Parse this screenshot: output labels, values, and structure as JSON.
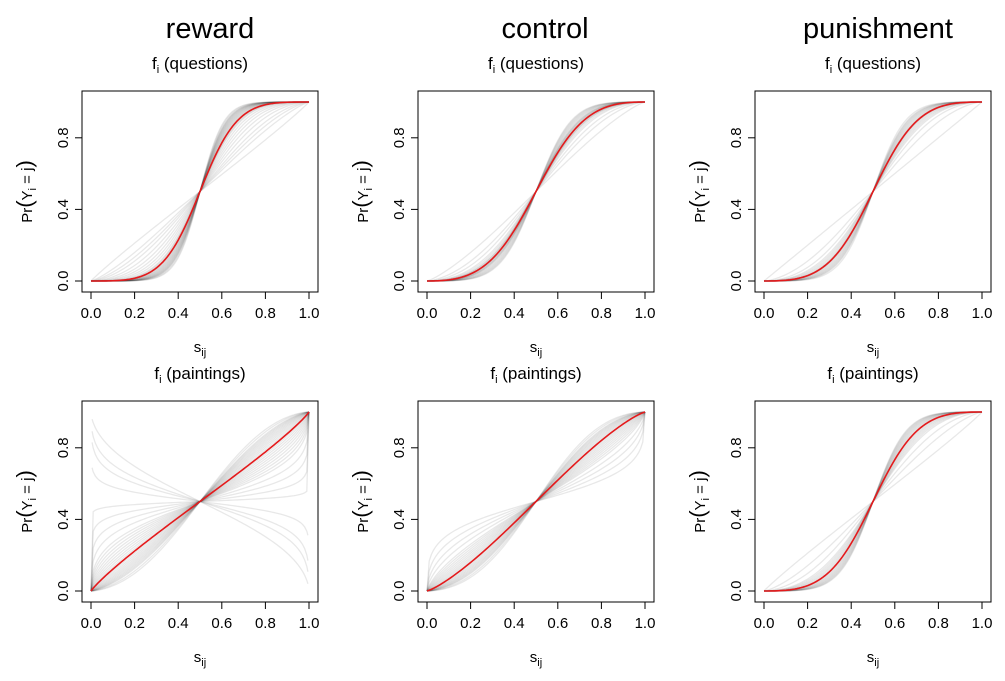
{
  "conditions": [
    "reward",
    "control",
    "punishment"
  ],
  "panel_titles": {
    "questions": {
      "main": "f",
      "sub": "i",
      "rest": " (questions)"
    },
    "paintings": {
      "main": "f",
      "sub": "i",
      "rest": " (paintings)"
    }
  },
  "axis_labels": {
    "xlabel": {
      "main": "s",
      "sub": "ij"
    },
    "ylabel": {
      "pre": "Pr",
      "open": "(",
      "main": "Y",
      "sub": "i",
      "eq": " = j",
      "close": ")"
    }
  },
  "colors": {
    "mean_curve": "#e41a1c",
    "individual_curve": "#000000",
    "frame": "#000000"
  },
  "chart_data": [
    {
      "type": "line",
      "condition": "reward",
      "stimulus": "questions",
      "xlim": [
        0,
        1
      ],
      "ylim": [
        0,
        1
      ],
      "xticks": [
        "0.0",
        "0.2",
        "0.4",
        "0.6",
        "0.8",
        "1.0"
      ],
      "yticks": [
        "0.0",
        "0.4",
        "0.8"
      ],
      "mean_gamma": 3.0,
      "individual_gammas": [
        0.95,
        1.2,
        1.35,
        1.5,
        1.7,
        1.9,
        2.1,
        2.3,
        2.5,
        2.7,
        2.8,
        2.9,
        3.0,
        3.1,
        3.2,
        3.3,
        3.4,
        3.5,
        3.6,
        3.7,
        3.8,
        3.9,
        4.0,
        4.1,
        4.2,
        4.3,
        4.5,
        4.7
      ]
    },
    {
      "type": "line",
      "condition": "control",
      "stimulus": "questions",
      "xlim": [
        0,
        1
      ],
      "ylim": [
        0,
        1
      ],
      "xticks": [
        "0.0",
        "0.2",
        "0.4",
        "0.6",
        "0.8",
        "1.0"
      ],
      "yticks": [
        "0.0",
        "0.4",
        "0.8"
      ],
      "mean_gamma": 2.3,
      "individual_gammas": [
        1.2,
        1.5,
        1.7,
        1.9,
        2.0,
        2.1,
        2.15,
        2.2,
        2.25,
        2.3,
        2.35,
        2.4,
        2.45,
        2.5,
        2.55,
        2.6,
        2.7,
        2.8,
        2.9,
        3.0,
        3.1,
        3.2
      ]
    },
    {
      "type": "line",
      "condition": "punishment",
      "stimulus": "questions",
      "xlim": [
        0,
        1
      ],
      "ylim": [
        0,
        1
      ],
      "xticks": [
        "0.0",
        "0.2",
        "0.4",
        "0.6",
        "0.8",
        "1.0"
      ],
      "yticks": [
        "0.0",
        "0.4",
        "0.8"
      ],
      "mean_gamma": 2.5,
      "individual_gammas": [
        1.0,
        1.5,
        1.8,
        2.0,
        2.1,
        2.2,
        2.3,
        2.4,
        2.45,
        2.5,
        2.55,
        2.6,
        2.7,
        2.8,
        2.9,
        3.0,
        3.1,
        3.2,
        3.3,
        3.5
      ]
    },
    {
      "type": "line",
      "condition": "reward",
      "stimulus": "paintings",
      "xlim": [
        0,
        1
      ],
      "ylim": [
        0,
        1
      ],
      "xticks": [
        "0.0",
        "0.2",
        "0.4",
        "0.6",
        "0.8",
        "1.0"
      ],
      "yticks": [
        "0.0",
        "0.4",
        "0.8"
      ],
      "mean_gamma": 0.9,
      "individual_gammas": [
        -0.6,
        -0.4,
        -0.3,
        -0.15,
        0.05,
        0.15,
        0.25,
        0.35,
        0.45,
        0.5,
        0.55,
        0.6,
        0.65,
        0.7,
        0.75,
        0.8,
        0.85,
        0.9,
        0.95,
        1.0,
        1.05,
        1.1,
        1.15,
        1.2,
        1.25,
        1.3,
        1.35,
        1.4,
        1.5,
        1.6
      ]
    },
    {
      "type": "line",
      "condition": "control",
      "stimulus": "paintings",
      "xlim": [
        0,
        1
      ],
      "ylim": [
        0,
        1
      ],
      "xticks": [
        "0.0",
        "0.2",
        "0.4",
        "0.6",
        "0.8",
        "1.0"
      ],
      "yticks": [
        "0.0",
        "0.4",
        "0.8"
      ],
      "mean_gamma": 1.2,
      "individual_gammas": [
        0.35,
        0.45,
        0.55,
        0.65,
        0.75,
        0.8,
        0.85,
        0.9,
        0.95,
        1.0,
        1.05,
        1.1,
        1.15,
        1.2,
        1.25,
        1.3,
        1.35,
        1.4,
        1.45,
        1.5,
        1.55,
        1.6,
        1.7,
        1.8
      ]
    },
    {
      "type": "line",
      "condition": "punishment",
      "stimulus": "paintings",
      "xlim": [
        0,
        1
      ],
      "ylim": [
        0,
        1
      ],
      "xticks": [
        "0.0",
        "0.2",
        "0.4",
        "0.6",
        "0.8",
        "1.0"
      ],
      "yticks": [
        "0.0",
        "0.4",
        "0.8"
      ],
      "mean_gamma": 2.5,
      "individual_gammas": [
        0.95,
        1.3,
        1.6,
        1.9,
        2.0,
        2.1,
        2.2,
        2.3,
        2.4,
        2.5,
        2.6,
        2.7,
        2.8,
        2.9,
        3.0,
        3.1,
        3.2,
        3.3,
        3.4
      ]
    }
  ]
}
